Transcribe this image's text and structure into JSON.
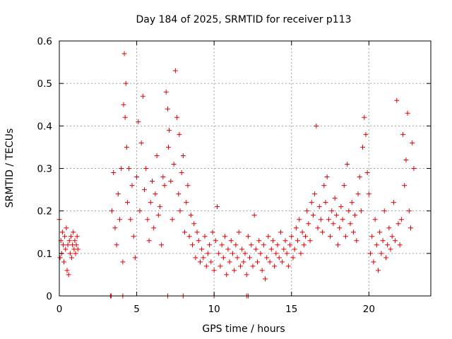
{
  "chart_data": {
    "type": "scatter",
    "title": "Day 184 of 2025, SRMTID for receiver p113",
    "xlabel": "GPS time / hours",
    "ylabel": "SRMTID / TECUs",
    "xlim": [
      0,
      24
    ],
    "ylim": [
      0,
      0.6
    ],
    "xticks": [
      0,
      5,
      10,
      15,
      20
    ],
    "xtick_labels": [
      "0",
      "5",
      "10",
      "15",
      "20"
    ],
    "yticks": [
      0,
      0.1,
      0.2,
      0.3,
      0.4,
      0.5,
      0.6
    ],
    "ytick_labels": [
      "0",
      "0.1",
      "0.2",
      "0.3",
      "0.4",
      "0.5",
      "0.6"
    ],
    "grid": true,
    "marker": "+",
    "marker_color": "#e00000",
    "series": [
      {
        "name": "SRMTID",
        "x": [
          0.0,
          0.05,
          0.1,
          0.15,
          0.2,
          0.25,
          0.3,
          0.35,
          0.4,
          0.45,
          0.5,
          0.55,
          0.6,
          0.65,
          0.7,
          0.75,
          0.8,
          0.85,
          0.9,
          0.95,
          1.0,
          1.05,
          1.1,
          1.15,
          1.2,
          3.4,
          3.5,
          3.6,
          3.7,
          3.8,
          3.9,
          4.0,
          4.1,
          4.15,
          4.2,
          4.25,
          4.3,
          4.35,
          4.4,
          4.5,
          4.6,
          4.7,
          4.8,
          4.9,
          5.0,
          5.1,
          5.2,
          5.3,
          5.4,
          5.5,
          5.6,
          5.7,
          5.8,
          5.9,
          6.0,
          6.1,
          6.2,
          6.3,
          6.4,
          6.5,
          6.6,
          6.7,
          6.8,
          6.9,
          7.0,
          7.05,
          7.1,
          7.2,
          7.3,
          7.4,
          7.5,
          7.6,
          7.7,
          7.75,
          7.8,
          7.9,
          8.0,
          8.1,
          8.2,
          8.3,
          8.4,
          8.5,
          8.6,
          8.7,
          8.8,
          8.9,
          9.0,
          9.1,
          9.2,
          9.3,
          9.4,
          9.5,
          9.6,
          9.7,
          9.8,
          9.9,
          10.0,
          10.1,
          10.2,
          10.3,
          10.4,
          10.5,
          10.6,
          10.7,
          10.8,
          10.9,
          11.0,
          11.1,
          11.2,
          11.3,
          11.4,
          11.5,
          11.6,
          11.7,
          11.8,
          11.9,
          12.0,
          12.1,
          12.2,
          12.3,
          12.4,
          12.5,
          12.6,
          12.7,
          12.8,
          12.9,
          13.0,
          13.1,
          13.2,
          13.3,
          13.4,
          13.5,
          13.6,
          13.7,
          13.8,
          13.9,
          14.0,
          14.1,
          14.2,
          14.3,
          14.4,
          14.5,
          14.6,
          14.7,
          14.8,
          14.9,
          15.0,
          15.1,
          15.2,
          15.3,
          15.4,
          15.5,
          15.6,
          15.7,
          15.8,
          15.9,
          16.0,
          16.1,
          16.2,
          16.3,
          16.4,
          16.5,
          16.6,
          16.7,
          16.8,
          16.9,
          17.0,
          17.1,
          17.2,
          17.3,
          17.4,
          17.5,
          17.6,
          17.7,
          17.8,
          17.9,
          18.0,
          18.1,
          18.2,
          18.3,
          18.4,
          18.5,
          18.6,
          18.7,
          18.8,
          18.9,
          19.0,
          19.1,
          19.2,
          19.3,
          19.4,
          19.5,
          19.6,
          19.7,
          19.8,
          19.9,
          20.0,
          20.1,
          20.2,
          20.3,
          20.4,
          20.5,
          20.6,
          20.7,
          20.8,
          20.9,
          21.0,
          21.1,
          21.2,
          21.3,
          21.4,
          21.5,
          21.6,
          21.7,
          21.8,
          21.9,
          22.0,
          22.1,
          22.2,
          22.3,
          22.4,
          22.5,
          22.6,
          22.7,
          22.8,
          22.9,
          3.3,
          3.35,
          4.1,
          7.0,
          8.0,
          10.0,
          12.1,
          12.2
        ],
        "y": [
          0.18,
          0.09,
          0.13,
          0.1,
          0.15,
          0.12,
          0.08,
          0.14,
          0.11,
          0.16,
          0.06,
          0.12,
          0.05,
          0.13,
          0.1,
          0.14,
          0.09,
          0.12,
          0.15,
          0.11,
          0.13,
          0.1,
          0.12,
          0.14,
          0.11,
          0.2,
          0.29,
          0.16,
          0.12,
          0.24,
          0.18,
          0.3,
          0.08,
          0.45,
          0.57,
          0.42,
          0.5,
          0.35,
          0.22,
          0.3,
          0.18,
          0.26,
          0.14,
          0.09,
          0.28,
          0.41,
          0.2,
          0.36,
          0.47,
          0.25,
          0.3,
          0.18,
          0.13,
          0.22,
          0.27,
          0.16,
          0.24,
          0.33,
          0.19,
          0.21,
          0.12,
          0.28,
          0.26,
          0.48,
          0.44,
          0.35,
          0.39,
          0.27,
          0.18,
          0.31,
          0.53,
          0.42,
          0.24,
          0.38,
          0.2,
          0.29,
          0.33,
          0.15,
          0.22,
          0.26,
          0.14,
          0.19,
          0.12,
          0.17,
          0.09,
          0.15,
          0.13,
          0.08,
          0.11,
          0.09,
          0.14,
          0.07,
          0.1,
          0.12,
          0.08,
          0.15,
          0.06,
          0.13,
          0.21,
          0.1,
          0.07,
          0.12,
          0.09,
          0.14,
          0.05,
          0.11,
          0.08,
          0.13,
          0.1,
          0.06,
          0.12,
          0.09,
          0.15,
          0.07,
          0.11,
          0.08,
          0.1,
          0.05,
          0.14,
          0.09,
          0.12,
          0.07,
          0.19,
          0.11,
          0.08,
          0.13,
          0.1,
          0.06,
          0.12,
          0.04,
          0.09,
          0.14,
          0.08,
          0.11,
          0.13,
          0.07,
          0.1,
          0.12,
          0.09,
          0.15,
          0.08,
          0.11,
          0.13,
          0.1,
          0.07,
          0.12,
          0.14,
          0.09,
          0.11,
          0.16,
          0.13,
          0.18,
          0.1,
          0.15,
          0.12,
          0.14,
          0.2,
          0.17,
          0.13,
          0.22,
          0.19,
          0.24,
          0.4,
          0.16,
          0.21,
          0.18,
          0.15,
          0.26,
          0.22,
          0.28,
          0.18,
          0.14,
          0.2,
          0.17,
          0.23,
          0.19,
          0.12,
          0.16,
          0.21,
          0.18,
          0.26,
          0.14,
          0.31,
          0.2,
          0.17,
          0.22,
          0.15,
          0.19,
          0.13,
          0.24,
          0.28,
          0.2,
          0.35,
          0.42,
          0.38,
          0.29,
          0.24,
          0.1,
          0.14,
          0.08,
          0.18,
          0.12,
          0.06,
          0.15,
          0.1,
          0.13,
          0.2,
          0.09,
          0.12,
          0.16,
          0.11,
          0.14,
          0.22,
          0.13,
          0.46,
          0.17,
          0.12,
          0.18,
          0.38,
          0.26,
          0.32,
          0.43,
          0.2,
          0.16,
          0.36,
          0.3,
          0.0,
          0.0,
          0.0,
          0.0,
          0.0,
          0.0,
          0.0,
          0.0
        ]
      }
    ]
  }
}
